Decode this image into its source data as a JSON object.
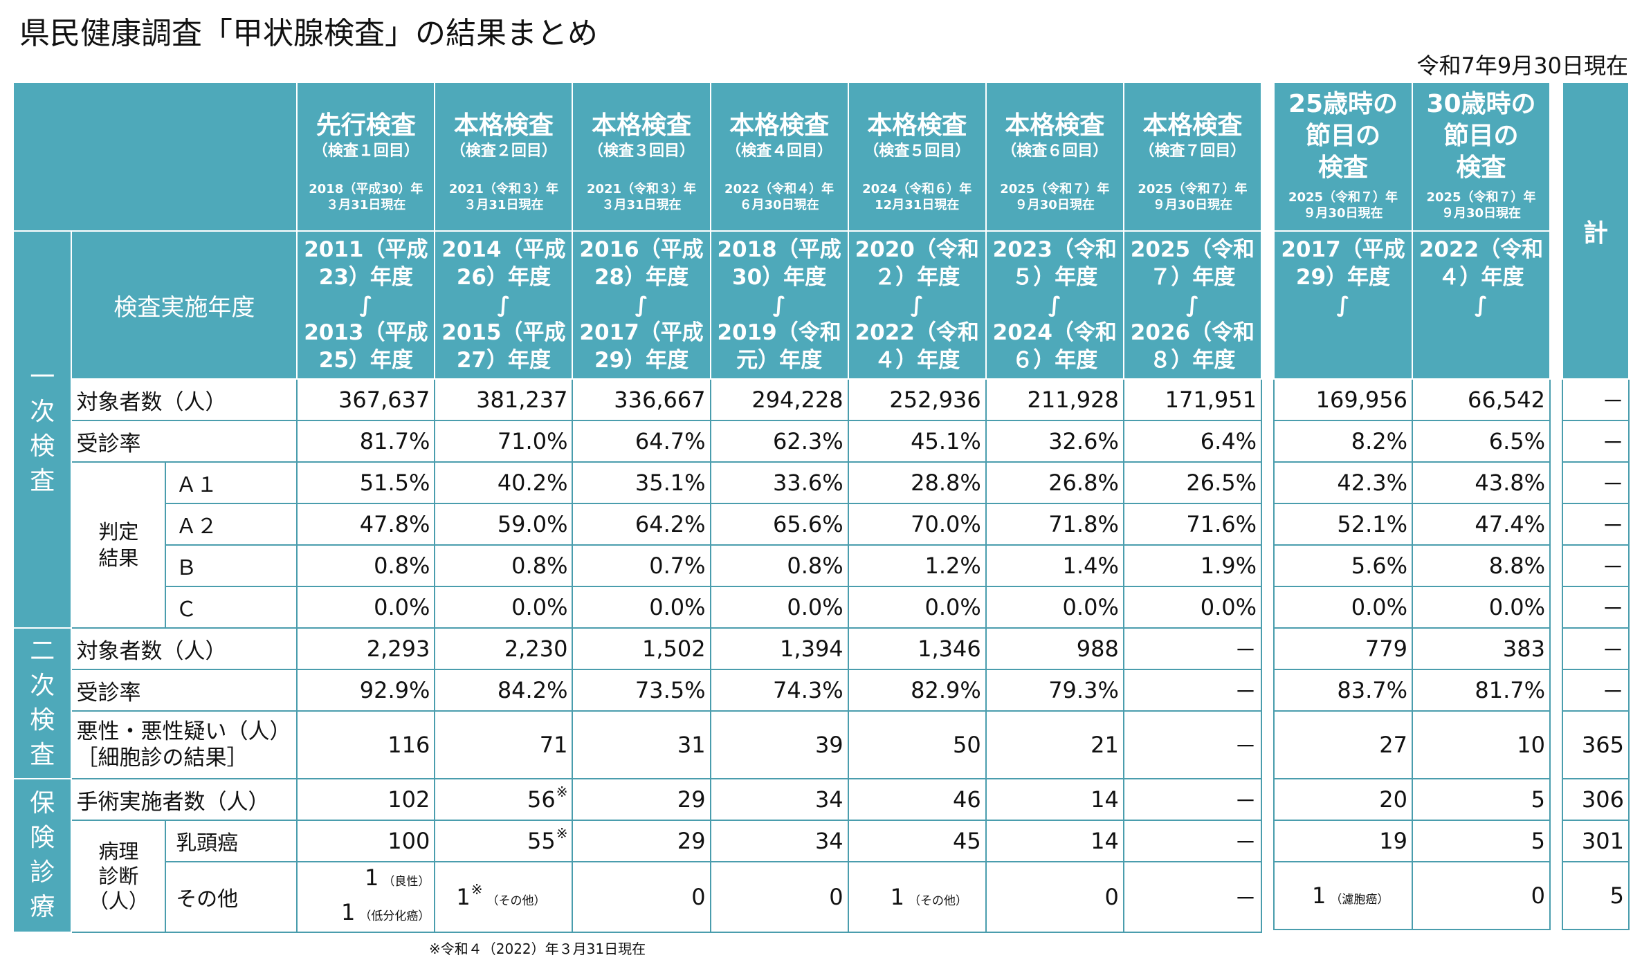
{
  "title": "県民健康調査「甲状腺検査」の結果まとめ",
  "as_of": "令和7年9月30日現在",
  "footnote": "※令和４（2022）年３月31日現在",
  "phases": [
    {
      "name": "先行検査",
      "sub": "（検査１回目）",
      "date1": "2018（平成30）年",
      "date2": "３月31日現在",
      "year1": "2011（平成",
      "year2": "23）年度",
      "tilde": "∫",
      "year3": "2013（平成",
      "year4": "25）年度"
    },
    {
      "name": "本格検査",
      "sub": "（検査２回目）",
      "date1": "2021（令和３）年",
      "date2": "３月31日現在",
      "year1": "2014（平成",
      "year2": "26）年度",
      "tilde": "∫",
      "year3": "2015（平成",
      "year4": "27）年度"
    },
    {
      "name": "本格検査",
      "sub": "（検査３回目）",
      "date1": "2021（令和３）年",
      "date2": "３月31日現在",
      "year1": "2016（平成",
      "year2": "28）年度",
      "tilde": "∫",
      "year3": "2017（平成",
      "year4": "29）年度"
    },
    {
      "name": "本格検査",
      "sub": "（検査４回目）",
      "date1": "2022（令和４）年",
      "date2": "６月30日現在",
      "year1": "2018（平成",
      "year2": "30）年度",
      "tilde": "∫",
      "year3": "2019（令和",
      "year4": "元）年度"
    },
    {
      "name": "本格検査",
      "sub": "（検査５回目）",
      "date1": "2024（令和６）年",
      "date2": "12月31日現在",
      "year1": "2020（令和",
      "year2": "２）年度",
      "tilde": "∫",
      "year3": "2022（令和",
      "year4": "４）年度"
    },
    {
      "name": "本格検査",
      "sub": "（検査６回目）",
      "date1": "2025（令和７）年",
      "date2": "９月30日現在",
      "year1": "2023（令和",
      "year2": "５）年度",
      "tilde": "∫",
      "year3": "2024（令和",
      "year4": "６）年度"
    },
    {
      "name": "本格検査",
      "sub": "（検査７回目）",
      "date1": "2025（令和７）年",
      "date2": "９月30日現在",
      "year1": "2025（令和",
      "year2": "７）年度",
      "tilde": "∫",
      "year3": "2026（令和",
      "year4": "８）年度"
    }
  ],
  "milestones": [
    {
      "name1": "25歳時の",
      "name2": "節目の",
      "name3": "検査",
      "date1": "2025（令和７）年",
      "date2": "９月30日現在",
      "year1": "2017（平成",
      "year2": "29）年度",
      "tilde": "∫"
    },
    {
      "name1": "30歳時の",
      "name2": "節目の",
      "name3": "検査",
      "date1": "2025（令和７）年",
      "date2": "９月30日現在",
      "year1": "2022（令和",
      "year2": "４）年度",
      "tilde": "∫"
    }
  ],
  "total_label": "計",
  "labels": {
    "year_header": "検査実施年度",
    "primary": [
      "一",
      "次",
      "検",
      "査"
    ],
    "secondary": [
      "二",
      "次",
      "検",
      "査"
    ],
    "insurance": [
      "保",
      "険",
      "診",
      "療"
    ],
    "targets": "対象者数（人）",
    "rate": "受診率",
    "judgement1": "判定",
    "judgement2": "結果",
    "a1": "Ａ１",
    "a2": "Ａ２",
    "b": "Ｂ",
    "c": "Ｃ",
    "malignant1": "悪性・悪性疑い（人）",
    "malignant2": "［細胞診の結果］",
    "surgery": "手術実施者数（人）",
    "path1": "病理",
    "path2": "診断",
    "path3": "（人）",
    "papillary": "乳頭癌",
    "other": "その他"
  },
  "rows": {
    "p_targets": {
      "main": [
        "367,637",
        "381,237",
        "336,667",
        "294,228",
        "252,936",
        "211,928",
        "171,951"
      ],
      "side": [
        "169,956",
        "66,542"
      ],
      "total": "－"
    },
    "p_rate": {
      "main": [
        "81.7%",
        "71.0%",
        "64.7%",
        "62.3%",
        "45.1%",
        "32.6%",
        "6.4%"
      ],
      "side": [
        "8.2%",
        "6.5%"
      ],
      "total": "－"
    },
    "a1": {
      "main": [
        "51.5%",
        "40.2%",
        "35.1%",
        "33.6%",
        "28.8%",
        "26.8%",
        "26.5%"
      ],
      "side": [
        "42.3%",
        "43.8%"
      ],
      "total": "－"
    },
    "a2": {
      "main": [
        "47.8%",
        "59.0%",
        "64.2%",
        "65.6%",
        "70.0%",
        "71.8%",
        "71.6%"
      ],
      "side": [
        "52.1%",
        "47.4%"
      ],
      "total": "－"
    },
    "b": {
      "main": [
        "0.8%",
        "0.8%",
        "0.7%",
        "0.8%",
        "1.2%",
        "1.4%",
        "1.9%"
      ],
      "side": [
        "5.6%",
        "8.8%"
      ],
      "total": "－"
    },
    "c": {
      "main": [
        "0.0%",
        "0.0%",
        "0.0%",
        "0.0%",
        "0.0%",
        "0.0%",
        "0.0%"
      ],
      "side": [
        "0.0%",
        "0.0%"
      ],
      "total": "－"
    },
    "s_targets": {
      "main": [
        "2,293",
        "2,230",
        "1,502",
        "1,394",
        "1,346",
        "988",
        "－"
      ],
      "side": [
        "779",
        "383"
      ],
      "total": "－"
    },
    "s_rate": {
      "main": [
        "92.9%",
        "84.2%",
        "73.5%",
        "74.3%",
        "82.9%",
        "79.3%",
        "－"
      ],
      "side": [
        "83.7%",
        "81.7%"
      ],
      "total": "－"
    },
    "malignant": {
      "main": [
        "116",
        "71",
        "31",
        "39",
        "50",
        "21",
        "－"
      ],
      "side": [
        "27",
        "10"
      ],
      "total": "365"
    },
    "surgery": {
      "main": [
        "102",
        "56",
        "29",
        "34",
        "46",
        "14",
        "－"
      ],
      "side": [
        "20",
        "5"
      ],
      "total": "306"
    },
    "papillary": {
      "main": [
        "100",
        "55",
        "29",
        "34",
        "45",
        "14",
        "－"
      ],
      "side": [
        "19",
        "5"
      ],
      "total": "301"
    },
    "other": {
      "main": [
        "",
        "",
        "0",
        "0",
        "",
        "0",
        "－"
      ],
      "side": [
        "",
        "0"
      ],
      "total": "5"
    }
  },
  "marks": {
    "surgery_2": "※",
    "papillary_2": "※"
  },
  "other_detail": {
    "c1a_val": "1",
    "c1a_note": "（良性）",
    "c1b_val": "1",
    "c1b_note": "（低分化癌）",
    "c2_val": "1",
    "c2_mark": "※",
    "c2_note": "（その他）",
    "c5_val": "1",
    "c5_note": "（その他）",
    "s1_val": "1",
    "s1_note": "（濾胞癌）"
  }
}
